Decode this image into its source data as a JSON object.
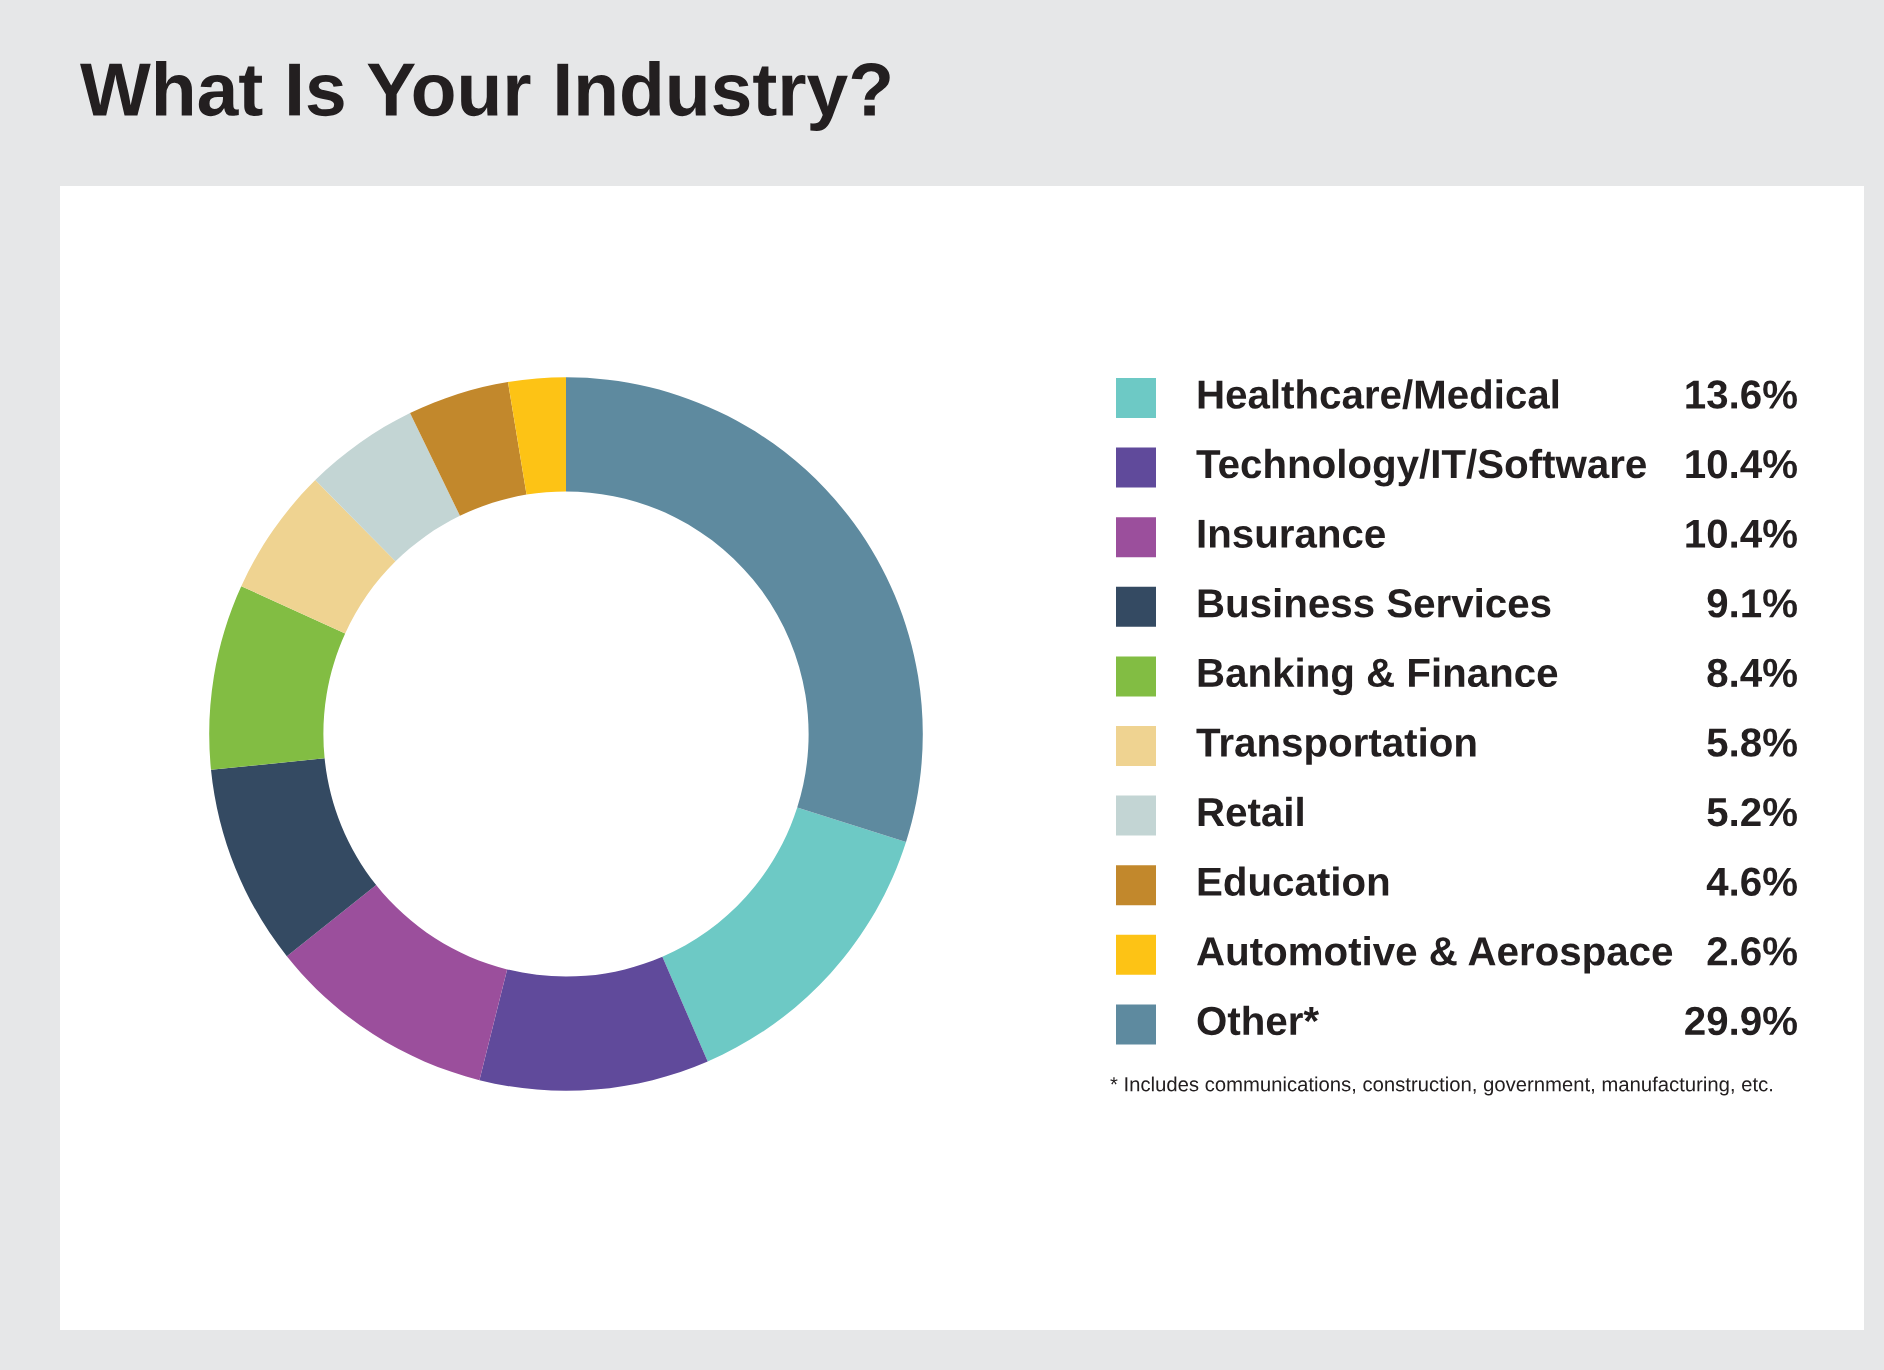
{
  "chart_data": {
    "type": "donut",
    "title": "What Is Your Industry?",
    "categories": [
      "Healthcare/Medical",
      "Technology/IT/Software",
      "Insurance",
      "Business Services",
      "Banking & Finance",
      "Transportation",
      "Retail",
      "Education",
      "Automotive & Aerospace",
      "Other*"
    ],
    "values": [
      13.6,
      10.4,
      10.4,
      9.1,
      8.4,
      5.8,
      5.2,
      4.6,
      2.6,
      29.9
    ],
    "value_labels": [
      "13.6%",
      "10.4%",
      "10.4%",
      "9.1%",
      "8.4%",
      "5.8%",
      "5.2%",
      "4.6%",
      "2.6%",
      "29.9%"
    ],
    "colors": [
      "#6dc9c5",
      "#604a9b",
      "#9b4f9c",
      "#344a62",
      "#82bd43",
      "#efd391",
      "#c3d5d4",
      "#c2882c",
      "#fdc315",
      "#5e8a9f"
    ],
    "legend": "right",
    "annotations": [
      "* Includes communications, construction, government, manufacturing, etc."
    ]
  }
}
